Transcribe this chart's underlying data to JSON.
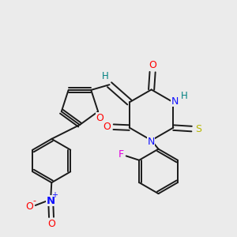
{
  "background_color": "#ebebeb",
  "bond_color": "#1a1a1a",
  "atom_colors": {
    "O": "#ff0000",
    "N": "#1010ff",
    "S": "#b8b800",
    "F": "#e000e0",
    "H": "#008080",
    "C": "#1a1a1a"
  }
}
